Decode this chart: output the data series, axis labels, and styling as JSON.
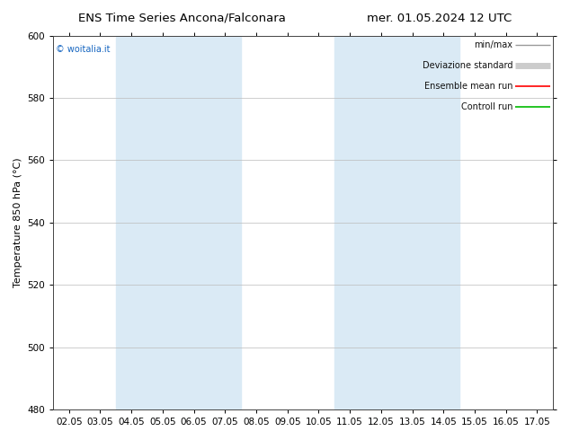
{
  "title_left": "ENS Time Series Ancona/Falconara",
  "title_right": "mer. 01.05.2024 12 UTC",
  "ylabel": "Temperature 850 hPa (°C)",
  "ylim": [
    480,
    600
  ],
  "yticks": [
    480,
    500,
    520,
    540,
    560,
    580,
    600
  ],
  "xtick_labels": [
    "02.05",
    "03.05",
    "04.05",
    "05.05",
    "06.05",
    "07.05",
    "08.05",
    "09.05",
    "10.05",
    "11.05",
    "12.05",
    "13.05",
    "14.05",
    "15.05",
    "16.05",
    "17.05"
  ],
  "shaded_bands": [
    {
      "start": 2,
      "end": 5,
      "color": "#daeaf5"
    },
    {
      "start": 9,
      "end": 12,
      "color": "#daeaf5"
    }
  ],
  "legend_entries": [
    {
      "label": "min/max",
      "color": "#999999",
      "lw": 1.0
    },
    {
      "label": "Deviazione standard",
      "color": "#cccccc",
      "lw": 5.0
    },
    {
      "label": "Ensemble mean run",
      "color": "#ff0000",
      "lw": 1.2
    },
    {
      "label": "Controll run",
      "color": "#00bb00",
      "lw": 1.2
    }
  ],
  "watermark": "© woitalia.it",
  "watermark_color": "#1565c0",
  "bg_color": "#ffffff",
  "title_fontsize": 9.5,
  "label_fontsize": 8,
  "tick_fontsize": 7.5,
  "legend_fontsize": 7
}
